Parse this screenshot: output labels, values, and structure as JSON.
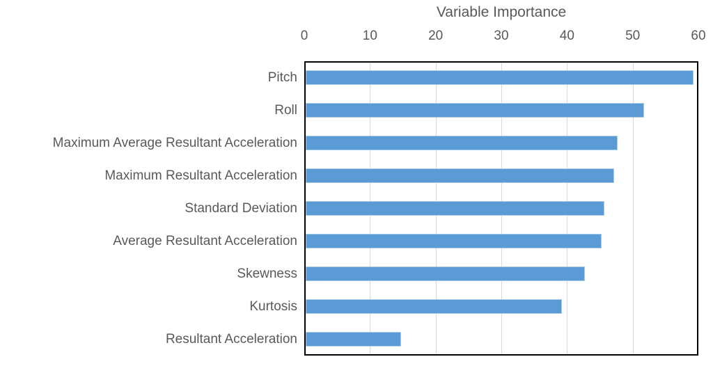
{
  "chart_data": {
    "type": "bar",
    "orientation": "horizontal",
    "title": "Variable Importance",
    "categories": [
      "Pitch",
      "Roll",
      "Maximum Average Resultant Acceleration",
      "Maximum Resultant Acceleration",
      "Standard Deviation",
      "Average Resultant Acceleration",
      "Skewness",
      "Kurtosis",
      "Resultant Acceleration"
    ],
    "values": [
      59,
      51.5,
      47.5,
      47,
      45.5,
      45,
      42.5,
      39,
      14.5
    ],
    "xlabel": "",
    "ylabel": "",
    "xlim": [
      0,
      60
    ],
    "x_ticks": [
      0,
      10,
      20,
      30,
      40,
      50,
      60
    ],
    "axis_position": "top",
    "grid": "vertical",
    "legend": "none",
    "colors": {
      "bar_fill": "#5B9BD5",
      "bar_border": "#A9CCE9",
      "gridline": "#D9D9D9",
      "plot_border": "#000000",
      "text": "#595959"
    }
  }
}
